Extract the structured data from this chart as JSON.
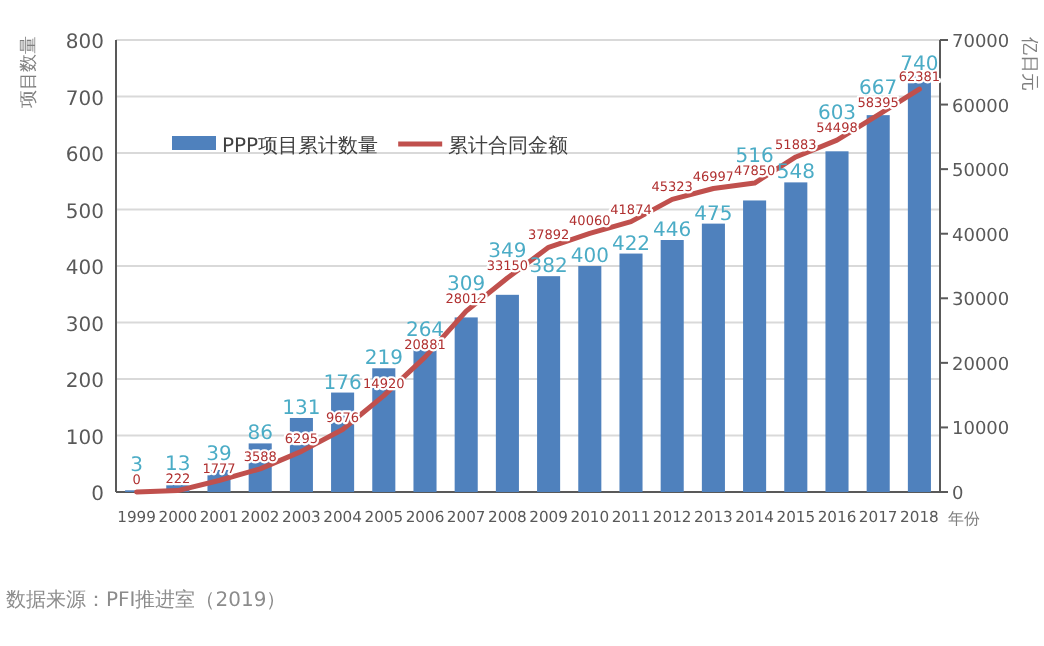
{
  "chart_data": {
    "type": "bar",
    "categories": [
      "1999",
      "2000",
      "2001",
      "2002",
      "2003",
      "2004",
      "2005",
      "2006",
      "2007",
      "2008",
      "2009",
      "2010",
      "2011",
      "2012",
      "2013",
      "2014",
      "2015",
      "2016",
      "2017",
      "2018"
    ],
    "series": [
      {
        "name": "PPP项目累计数量",
        "type": "bar",
        "color": "#4f81bd",
        "values": [
          3,
          13,
          39,
          86,
          131,
          176,
          219,
          264,
          309,
          349,
          382,
          400,
          422,
          446,
          475,
          516,
          548,
          603,
          667,
          740
        ]
      },
      {
        "name": "累计合同金额",
        "type": "line",
        "axis": "y2",
        "color": "#c0504d",
        "values": [
          0,
          222,
          1777,
          3588,
          6295,
          9676,
          14920,
          20881,
          28012,
          33150,
          37892,
          40060,
          41874,
          45323,
          46997,
          47850,
          51883,
          54498,
          58395,
          62381
        ]
      }
    ],
    "data_labels": true,
    "ylabel": "项目数量",
    "y2label": "亿日元",
    "xlabel": "年份",
    "ylim": [
      0,
      800
    ],
    "yticks": [
      0,
      100,
      200,
      300,
      400,
      500,
      600,
      700,
      800
    ],
    "y2lim": [
      0,
      70000
    ],
    "y2ticks": [
      0,
      10000,
      20000,
      30000,
      40000,
      50000,
      60000,
      70000
    ],
    "grid": "y",
    "legend": "top left",
    "annotations": [
      "数据来源：PFI推进室（2019）"
    ]
  }
}
